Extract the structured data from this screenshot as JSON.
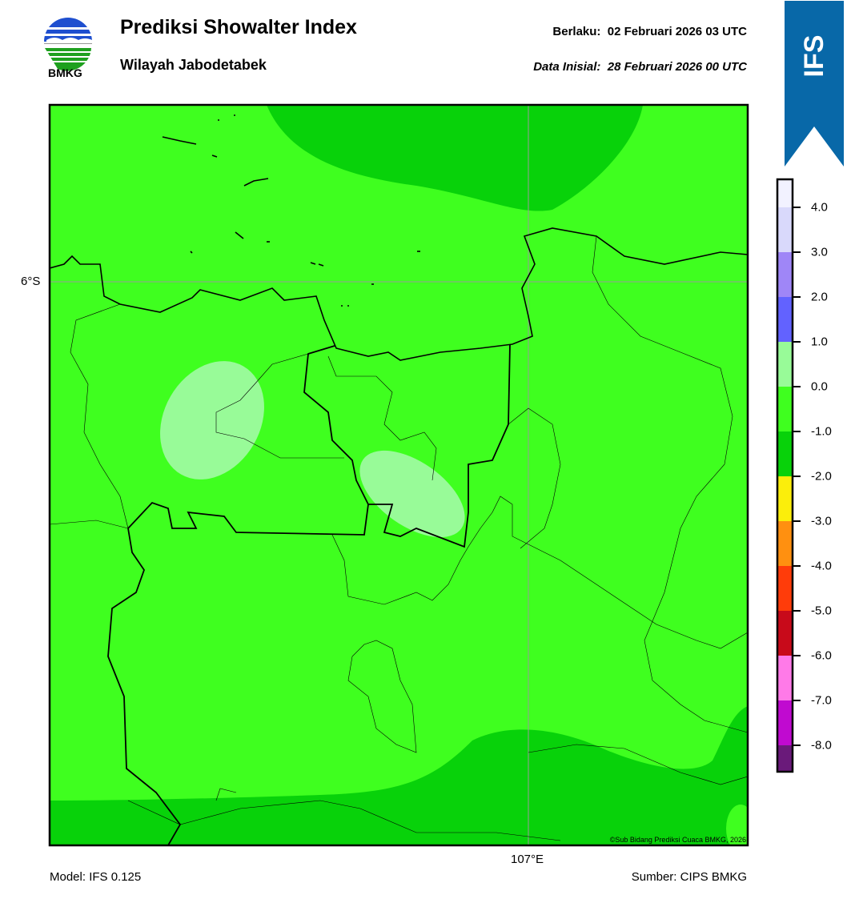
{
  "header": {
    "title": "Prediksi Showalter Index",
    "subtitle": "Wilayah Jabodetabek",
    "valid_label": "Berlaku:  02 Februari 2026 03 UTC",
    "init_label": "Data Inisial:  28 Februari 2026 00 UTC"
  },
  "logo": {
    "text": "BMKG"
  },
  "ribbon": {
    "text": "IFS",
    "color": "#0868a8"
  },
  "map": {
    "lat_label": "6°S",
    "lon_label": "107°E",
    "copyright": "©Sub Bidang Prediksi Cuaca BMKG, 2026",
    "colors": {
      "above_0": "#98fb98",
      "minus1_to_0": "#3fff1f",
      "minus2_to_minus1": "#08d20a"
    }
  },
  "colorbar": {
    "labels": [
      "4.0",
      "3.0",
      "2.0",
      "1.0",
      "0.0",
      "-1.0",
      "-2.0",
      "-3.0",
      "-4.0",
      "-5.0",
      "-6.0",
      "-7.0",
      "-8.0"
    ],
    "colors": [
      "#f2f2ff",
      "#d9d9fb",
      "#9f86f7",
      "#6262ff",
      "#98fb98",
      "#3fff1f",
      "#08d20a",
      "#fbee0b",
      "#ff9010",
      "#ff3c0a",
      "#c80a1a",
      "#ff7ae8",
      "#c00ad0",
      "#6a1a7a"
    ]
  },
  "footer": {
    "model": "Model: IFS 0.125",
    "source": "Sumber: CIPS BMKG"
  }
}
